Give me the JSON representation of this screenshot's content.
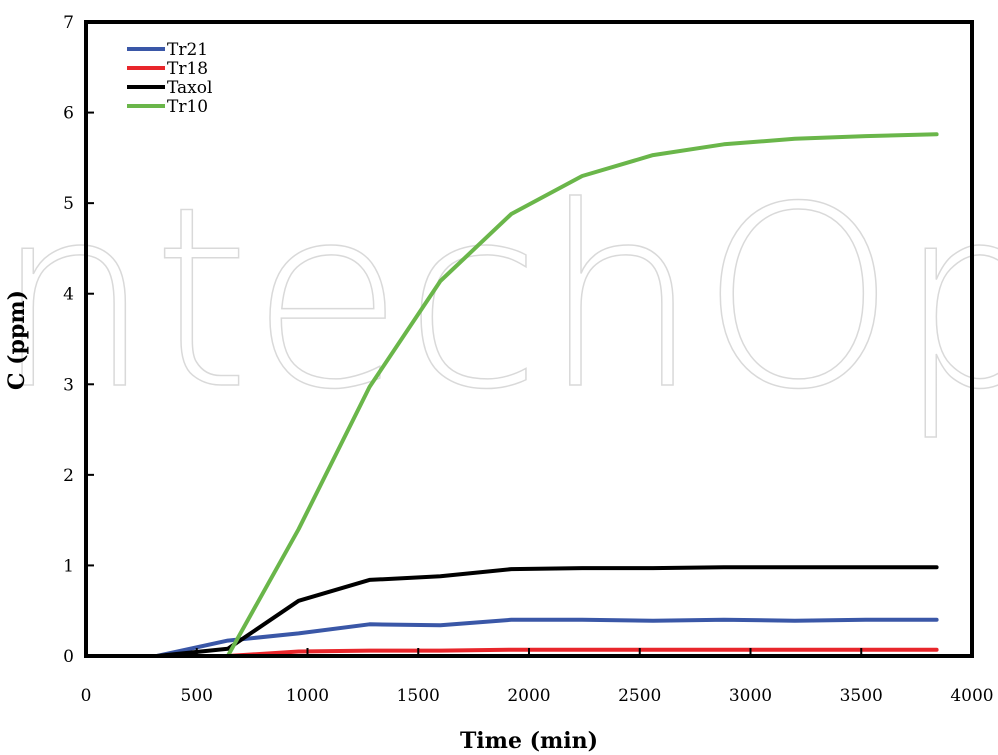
{
  "watermark": "IntechOpen",
  "chart_data": {
    "type": "line",
    "title": "",
    "xlabel": "Time (min)",
    "ylabel": "C (ppm)",
    "xlim": [
      0,
      4000
    ],
    "ylim": [
      0,
      7
    ],
    "xticks": [
      0,
      500,
      1000,
      1500,
      2000,
      2500,
      3000,
      3500,
      4000
    ],
    "yticks": [
      0,
      1,
      2,
      3,
      4,
      5,
      6,
      7
    ],
    "grid": false,
    "legend_position": "top-left",
    "series": [
      {
        "name": "Tr21",
        "color": "#3a57a7",
        "x": [
          0,
          320,
          640,
          960,
          1280,
          1600,
          1920,
          2240,
          2560,
          2880,
          3200,
          3520,
          3840
        ],
        "y": [
          0,
          0,
          0.17,
          0.25,
          0.35,
          0.34,
          0.4,
          0.4,
          0.39,
          0.4,
          0.39,
          0.4,
          0.4
        ]
      },
      {
        "name": "Tr18",
        "color": "#e8262b",
        "x": [
          0,
          320,
          640,
          960,
          1280,
          1600,
          1920,
          2240,
          2560,
          2880,
          3200,
          3520,
          3840
        ],
        "y": [
          0,
          0,
          0,
          0.05,
          0.06,
          0.06,
          0.07,
          0.07,
          0.07,
          0.07,
          0.07,
          0.07,
          0.07
        ]
      },
      {
        "name": "Taxol",
        "color": "#000000",
        "x": [
          0,
          320,
          640,
          960,
          1280,
          1600,
          1920,
          2240,
          2560,
          2880,
          3200,
          3520,
          3840
        ],
        "y": [
          0,
          0,
          0.08,
          0.61,
          0.84,
          0.88,
          0.96,
          0.97,
          0.97,
          0.98,
          0.98,
          0.98,
          0.98
        ]
      },
      {
        "name": "Tr10",
        "color": "#6ab64a",
        "x": [
          0,
          320,
          640,
          960,
          1280,
          1600,
          1920,
          2240,
          2560,
          2880,
          3200,
          3520,
          3840
        ],
        "y": [
          0,
          0,
          0,
          1.4,
          2.97,
          4.14,
          4.88,
          5.3,
          5.53,
          5.65,
          5.71,
          5.74,
          5.76
        ]
      }
    ]
  }
}
